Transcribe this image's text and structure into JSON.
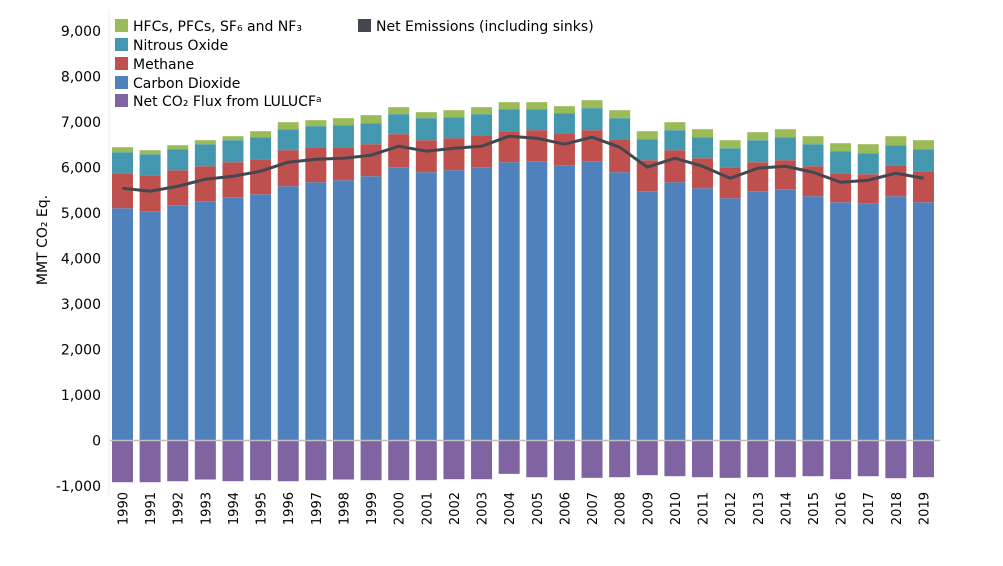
{
  "chart_data": {
    "type": "bar",
    "stacked": true,
    "title": "",
    "xlabel": "",
    "ylabel": "MMT CO₂ Eq.",
    "ylim": [
      -1000,
      9000
    ],
    "yticks": [
      -1000,
      0,
      1000,
      2000,
      3000,
      4000,
      5000,
      6000,
      7000,
      8000,
      9000
    ],
    "ytick_labels": [
      "-1,000",
      "0",
      "1,000",
      "2,000",
      "3,000",
      "4,000",
      "5,000",
      "6,000",
      "7,000",
      "8,000",
      "9,000"
    ],
    "grid": false,
    "legend_placement": "top-left",
    "categories": [
      "1990",
      "1991",
      "1992",
      "1993",
      "1994",
      "1995",
      "1996",
      "1997",
      "1998",
      "1999",
      "2000",
      "2001",
      "2002",
      "2003",
      "2004",
      "2005",
      "2006",
      "2007",
      "2008",
      "2009",
      "2010",
      "2011",
      "2012",
      "2013",
      "2014",
      "2015",
      "2016",
      "2017",
      "2018",
      "2019"
    ],
    "series": [
      {
        "name": "Net CO₂ Flux from LULUCF",
        "superscript": "a",
        "color": "#8064a2",
        "values": [
          -917,
          -917,
          -895,
          -858,
          -895,
          -873,
          -895,
          -873,
          -858,
          -873,
          -873,
          -873,
          -851,
          -851,
          -733,
          -807,
          -873,
          -821,
          -807,
          -763,
          -785,
          -807,
          -821,
          -807,
          -807,
          -785,
          -851,
          -785,
          -829,
          -807
        ]
      },
      {
        "name": "Carbon Dioxide",
        "color": "#4f81bd",
        "values": [
          5104,
          5038,
          5170,
          5258,
          5346,
          5412,
          5588,
          5676,
          5720,
          5808,
          6006,
          5896,
          5940,
          6006,
          6116,
          6138,
          6050,
          6138,
          5896,
          5478,
          5676,
          5544,
          5324,
          5478,
          5522,
          5368,
          5236,
          5214,
          5368,
          5236
        ]
      },
      {
        "name": "Methane",
        "color": "#c0504d",
        "values": [
          770,
          792,
          770,
          770,
          770,
          770,
          792,
          770,
          726,
          704,
          726,
          704,
          704,
          704,
          682,
          682,
          704,
          682,
          726,
          682,
          704,
          660,
          682,
          638,
          638,
          660,
          638,
          638,
          682,
          682
        ]
      },
      {
        "name": "Nitrous Oxide",
        "color": "#4398b0",
        "values": [
          462,
          462,
          462,
          484,
          484,
          484,
          462,
          462,
          484,
          462,
          440,
          484,
          462,
          462,
          484,
          462,
          440,
          484,
          462,
          462,
          440,
          462,
          418,
          484,
          506,
          484,
          484,
          462,
          440,
          484
        ]
      },
      {
        "name": "HFCs, PFCs, SF₆ and NF₃",
        "color": "#9bbb59",
        "values": [
          110,
          88,
          88,
          88,
          88,
          132,
          154,
          132,
          154,
          176,
          154,
          132,
          154,
          154,
          154,
          154,
          154,
          176,
          176,
          176,
          176,
          176,
          176,
          176,
          176,
          176,
          176,
          198,
          198,
          198
        ]
      }
    ],
    "line_series": {
      "name": "Net Emissions (including sinks)",
      "color": "#44474f",
      "values": [
        5544,
        5478,
        5588,
        5742,
        5808,
        5918,
        6116,
        6182,
        6204,
        6270,
        6468,
        6358,
        6424,
        6468,
        6688,
        6644,
        6512,
        6666,
        6446,
        6006,
        6204,
        6028,
        5764,
        5984,
        6028,
        5896,
        5676,
        5720,
        5874,
        5764
      ]
    },
    "legend": [
      {
        "label": "HFCs, PFCs, SF₆ and NF₃",
        "color": "#9bbb59"
      },
      {
        "label": "Nitrous Oxide",
        "color": "#4398b0"
      },
      {
        "label": "Methane",
        "color": "#c0504d"
      },
      {
        "label": "Carbon Dioxide",
        "color": "#4f81bd"
      },
      {
        "label": "Net CO₂ Flux from LULUCF",
        "sup": "a",
        "color": "#8064a2"
      },
      {
        "label": "Net Emissions (including sinks)",
        "color": "#44474f"
      }
    ]
  }
}
